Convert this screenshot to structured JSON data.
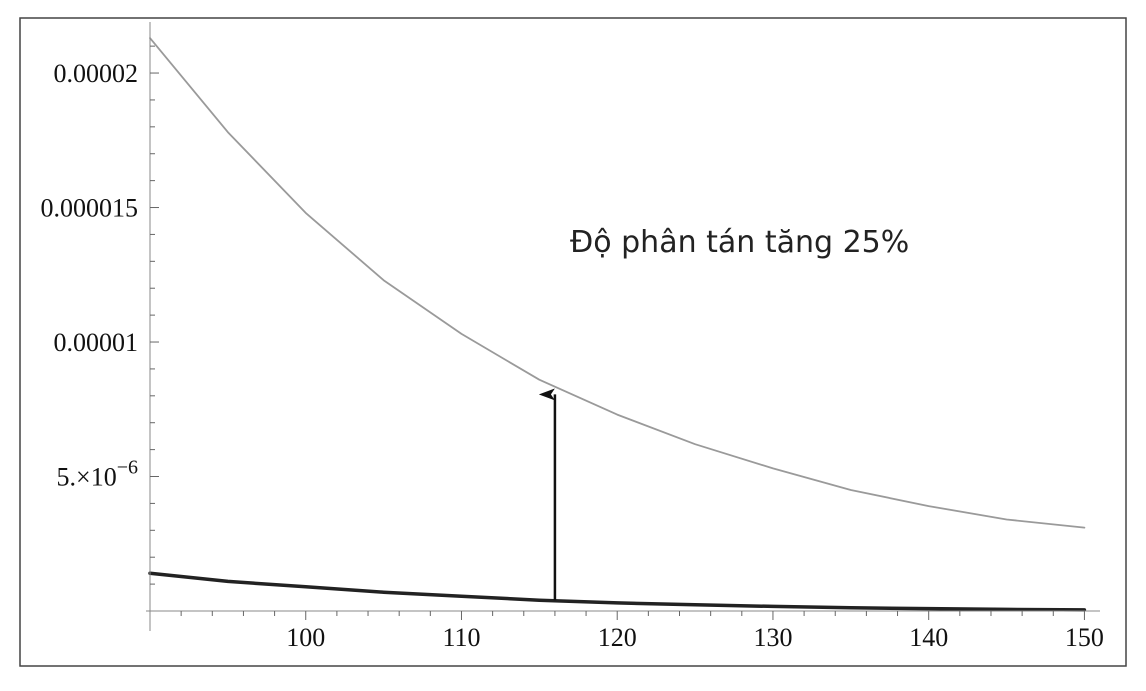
{
  "chart_data": {
    "type": "line",
    "title": "",
    "xlabel": "",
    "ylabel": "",
    "xlim": [
      90,
      151
    ],
    "ylim": [
      0,
      2.16e-05
    ],
    "grid": false,
    "x_ticks": [
      {
        "value": 100,
        "label": "100"
      },
      {
        "value": 110,
        "label": "110"
      },
      {
        "value": 120,
        "label": "120"
      },
      {
        "value": 130,
        "label": "130"
      },
      {
        "value": 140,
        "label": "140"
      },
      {
        "value": 150,
        "label": "150"
      }
    ],
    "y_ticks": [
      {
        "value": 5e-06,
        "label_base": "5.×10",
        "label_exp": "−6"
      },
      {
        "value": 1e-05,
        "label": "0.00001"
      },
      {
        "value": 1.5e-05,
        "label": "0.000015"
      },
      {
        "value": 2e-05,
        "label": "0.00002"
      }
    ],
    "series": [
      {
        "style": "thin-gray",
        "color": "#9a9a9a",
        "x": [
          90,
          95,
          100,
          105,
          110,
          115,
          120,
          125,
          130,
          135,
          140,
          145,
          150
        ],
        "y": [
          2.13e-05,
          1.78e-05,
          1.48e-05,
          1.23e-05,
          1.03e-05,
          8.6e-06,
          7.3e-06,
          6.2e-06,
          5.3e-06,
          4.5e-06,
          3.9e-06,
          3.4e-06,
          3.1e-06
        ]
      },
      {
        "style": "thick-black",
        "color": "#222222",
        "x": [
          90,
          95,
          100,
          105,
          110,
          115,
          120,
          125,
          130,
          135,
          140,
          145,
          150
        ],
        "y": [
          1.4e-06,
          1.1e-06,
          9e-07,
          7e-07,
          5.5e-07,
          4e-07,
          3e-07,
          2.3e-07,
          1.7e-07,
          1.2e-07,
          9e-08,
          6e-08,
          4e-08
        ]
      }
    ],
    "annotations": [
      {
        "text": "Độ phân tán tăng 25%"
      }
    ],
    "arrow": {
      "x": 116,
      "y_from": 4e-07,
      "y_to": 8.2e-06
    }
  }
}
